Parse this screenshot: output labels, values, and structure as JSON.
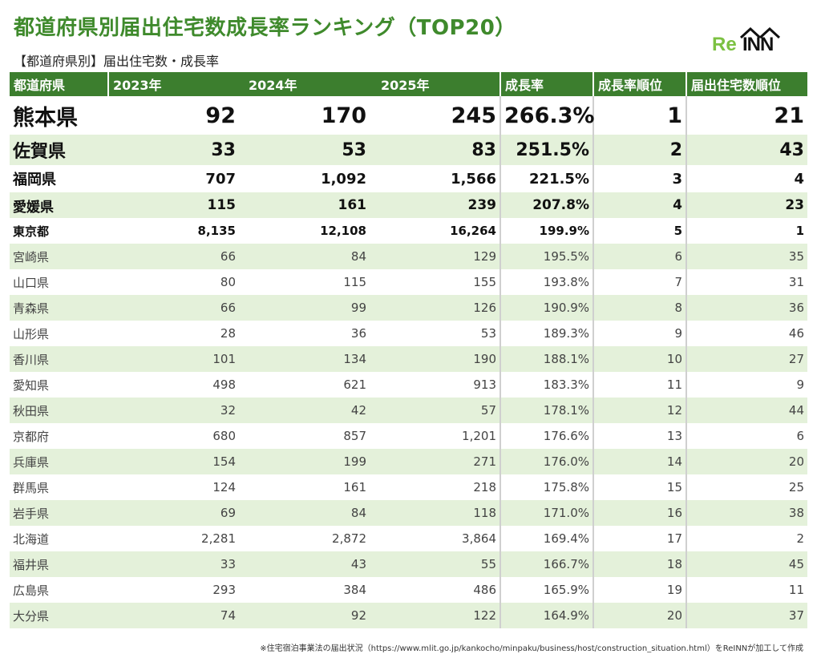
{
  "title": "都道府県別届出住宅数成長率ランキング（TOP20）",
  "subtitle": "【都道府県別】届出住宅数・成長率",
  "logo": {
    "re": "Re",
    "inn": "INN"
  },
  "headers": {
    "pref": "都道府県",
    "y2023": "2023年",
    "y2024": "2024年",
    "y2025": "2025年",
    "growth": "成長率",
    "growth_rank": "成長率順位",
    "count_rank": "届出住宅数順位"
  },
  "rows": [
    {
      "pref": "熊本県",
      "y2023": "92",
      "y2024": "170",
      "y2025": "245",
      "growth": "266.3%",
      "growth_rank": "1",
      "count_rank": "21"
    },
    {
      "pref": "佐賀県",
      "y2023": "33",
      "y2024": "53",
      "y2025": "83",
      "growth": "251.5%",
      "growth_rank": "2",
      "count_rank": "43"
    },
    {
      "pref": "福岡県",
      "y2023": "707",
      "y2024": "1,092",
      "y2025": "1,566",
      "growth": "221.5%",
      "growth_rank": "3",
      "count_rank": "4"
    },
    {
      "pref": "愛媛県",
      "y2023": "115",
      "y2024": "161",
      "y2025": "239",
      "growth": "207.8%",
      "growth_rank": "4",
      "count_rank": "23"
    },
    {
      "pref": "東京都",
      "y2023": "8,135",
      "y2024": "12,108",
      "y2025": "16,264",
      "growth": "199.9%",
      "growth_rank": "5",
      "count_rank": "1"
    },
    {
      "pref": "宮崎県",
      "y2023": "66",
      "y2024": "84",
      "y2025": "129",
      "growth": "195.5%",
      "growth_rank": "6",
      "count_rank": "35"
    },
    {
      "pref": "山口県",
      "y2023": "80",
      "y2024": "115",
      "y2025": "155",
      "growth": "193.8%",
      "growth_rank": "7",
      "count_rank": "31"
    },
    {
      "pref": "青森県",
      "y2023": "66",
      "y2024": "99",
      "y2025": "126",
      "growth": "190.9%",
      "growth_rank": "8",
      "count_rank": "36"
    },
    {
      "pref": "山形県",
      "y2023": "28",
      "y2024": "36",
      "y2025": "53",
      "growth": "189.3%",
      "growth_rank": "9",
      "count_rank": "46"
    },
    {
      "pref": "香川県",
      "y2023": "101",
      "y2024": "134",
      "y2025": "190",
      "growth": "188.1%",
      "growth_rank": "10",
      "count_rank": "27"
    },
    {
      "pref": "愛知県",
      "y2023": "498",
      "y2024": "621",
      "y2025": "913",
      "growth": "183.3%",
      "growth_rank": "11",
      "count_rank": "9"
    },
    {
      "pref": "秋田県",
      "y2023": "32",
      "y2024": "42",
      "y2025": "57",
      "growth": "178.1%",
      "growth_rank": "12",
      "count_rank": "44"
    },
    {
      "pref": "京都府",
      "y2023": "680",
      "y2024": "857",
      "y2025": "1,201",
      "growth": "176.6%",
      "growth_rank": "13",
      "count_rank": "6"
    },
    {
      "pref": "兵庫県",
      "y2023": "154",
      "y2024": "199",
      "y2025": "271",
      "growth": "176.0%",
      "growth_rank": "14",
      "count_rank": "20"
    },
    {
      "pref": "群馬県",
      "y2023": "124",
      "y2024": "161",
      "y2025": "218",
      "growth": "175.8%",
      "growth_rank": "15",
      "count_rank": "25"
    },
    {
      "pref": "岩手県",
      "y2023": "69",
      "y2024": "84",
      "y2025": "118",
      "growth": "171.0%",
      "growth_rank": "16",
      "count_rank": "38"
    },
    {
      "pref": "北海道",
      "y2023": "2,281",
      "y2024": "2,872",
      "y2025": "3,864",
      "growth": "169.4%",
      "growth_rank": "17",
      "count_rank": "2"
    },
    {
      "pref": "福井県",
      "y2023": "33",
      "y2024": "43",
      "y2025": "55",
      "growth": "166.7%",
      "growth_rank": "18",
      "count_rank": "45"
    },
    {
      "pref": "広島県",
      "y2023": "293",
      "y2024": "384",
      "y2025": "486",
      "growth": "165.9%",
      "growth_rank": "19",
      "count_rank": "11"
    },
    {
      "pref": "大分県",
      "y2023": "74",
      "y2024": "92",
      "y2025": "122",
      "growth": "164.9%",
      "growth_rank": "20",
      "count_rank": "37"
    }
  ],
  "footnote": "※住宅宿泊事業法の届出状況（https://www.mlit.go.jp/kankocho/minpaku/business/host/construction_situation.html）をReINNが加工して作成",
  "colors": {
    "accent": "#3c7e2e",
    "title": "#3f8a2c",
    "stripe": "#e4f1da",
    "logo_re": "#7cc142"
  }
}
